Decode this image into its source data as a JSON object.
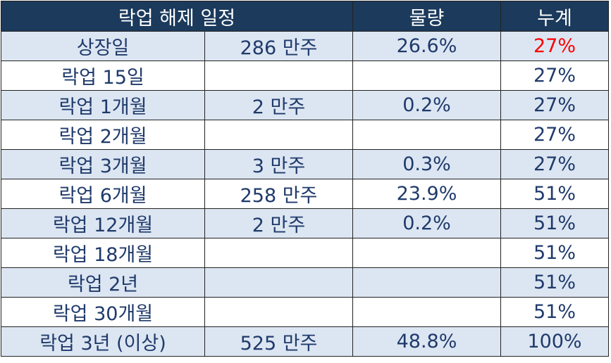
{
  "table": {
    "header": [
      "락업 해제 일정",
      "물량",
      "누계"
    ],
    "rows": [
      [
        "상장일",
        "286 만주",
        "26.6%",
        "27%"
      ],
      [
        "락업 15일",
        null,
        null,
        "27%"
      ],
      [
        "락업 1개월",
        "2 만주",
        "0.2%",
        "27%"
      ],
      [
        "락업 2개월",
        null,
        null,
        "27%"
      ],
      [
        "락업 3개월",
        "3 만주",
        "0.3%",
        "27%"
      ],
      [
        "락업 6개월",
        "258 만주",
        "23.9%",
        "51%"
      ],
      [
        "락업 12개월",
        "2 만주",
        "0.2%",
        "51%"
      ],
      [
        "락업 18개월",
        null,
        null,
        "51%"
      ],
      [
        "락업 2년",
        null,
        null,
        "51%"
      ],
      [
        "락업 30개월",
        null,
        null,
        "51%"
      ],
      [
        "락업 3년 (이상)",
        "525 만주",
        "48.8%",
        "100%"
      ]
    ]
  }
}
